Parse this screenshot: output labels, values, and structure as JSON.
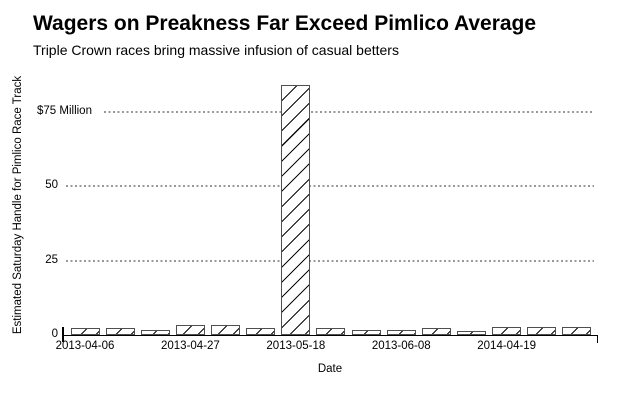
{
  "chart_data": {
    "type": "bar",
    "title": "Wagers on Preakness Far Exceed Pimlico Average",
    "subtitle": "Triple Crown races bring massive infusion of casual betters",
    "xlabel": "Date",
    "ylabel": "Estimated Saturday Handle for Pimlico Race Track",
    "units": "millions of USD",
    "ylim": [
      0,
      87
    ],
    "grid": "horizontal dotted gray lines at 25, 50, 75",
    "legend": "none",
    "bar_style": "white fill with black 45-degree diagonal hatch, dark gray border",
    "values": [
      2.2,
      2.2,
      1.8,
      3.5,
      3.5,
      2.2,
      84,
      2.2,
      1.8,
      1.8,
      2.5,
      1.5,
      2.8,
      2.8,
      2.8
    ],
    "x_tick_labels": [
      {
        "index": 0,
        "label": "2013-04-06"
      },
      {
        "index": 3,
        "label": "2013-04-27"
      },
      {
        "index": 6,
        "label": "2013-05-18"
      },
      {
        "index": 9,
        "label": "2013-06-08"
      },
      {
        "index": 12,
        "label": "2014-04-19"
      }
    ],
    "y_ticks": [
      {
        "value": 0,
        "label": "0"
      },
      {
        "value": 25,
        "label": "25"
      },
      {
        "value": 50,
        "label": "50"
      },
      {
        "value": 75,
        "label": "$75 Million"
      }
    ]
  },
  "colors": {
    "background": "#ffffff",
    "text": "#000000",
    "gridline": "#999999",
    "axis_line": "#000000",
    "bar_border": "#4f4f4f",
    "bar_hatch": "#0a0a0a",
    "bar_fill": "#ffffff"
  }
}
